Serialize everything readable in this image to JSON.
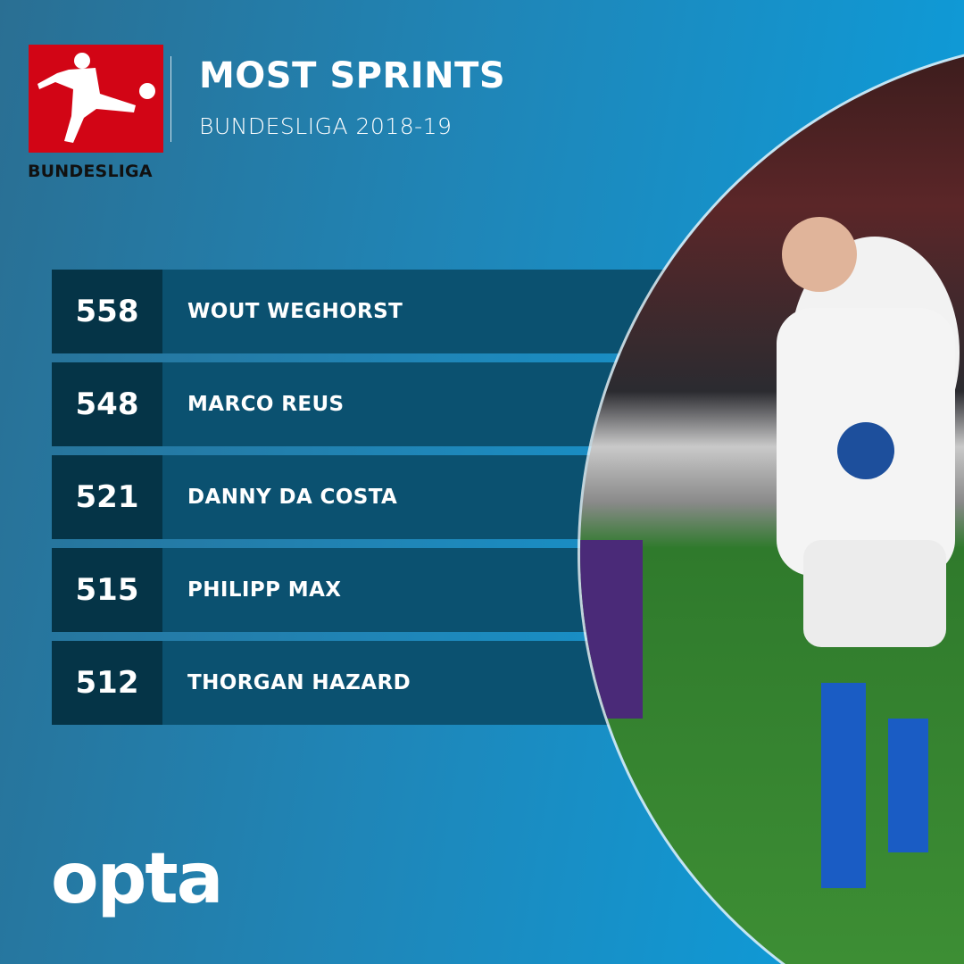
{
  "header": {
    "logo_text": "BUNDESLIGA",
    "title": "MOST SPRINTS",
    "subtitle": "BUNDESLIGA 2018-19"
  },
  "rows": [
    {
      "value": "558",
      "name": "WOUT WEGHORST"
    },
    {
      "value": "548",
      "name": "MARCO REUS"
    },
    {
      "value": "521",
      "name": "DANNY DA COSTA"
    },
    {
      "value": "515",
      "name": "PHILIPP MAX"
    },
    {
      "value": "512",
      "name": "THORGAN HAZARD"
    }
  ],
  "footer": {
    "brand": "opta"
  },
  "colors": {
    "logo_red": "#d20515",
    "row_bg": "#0b5170",
    "value_bg": "#053447",
    "accent": "#0aa0e0"
  }
}
